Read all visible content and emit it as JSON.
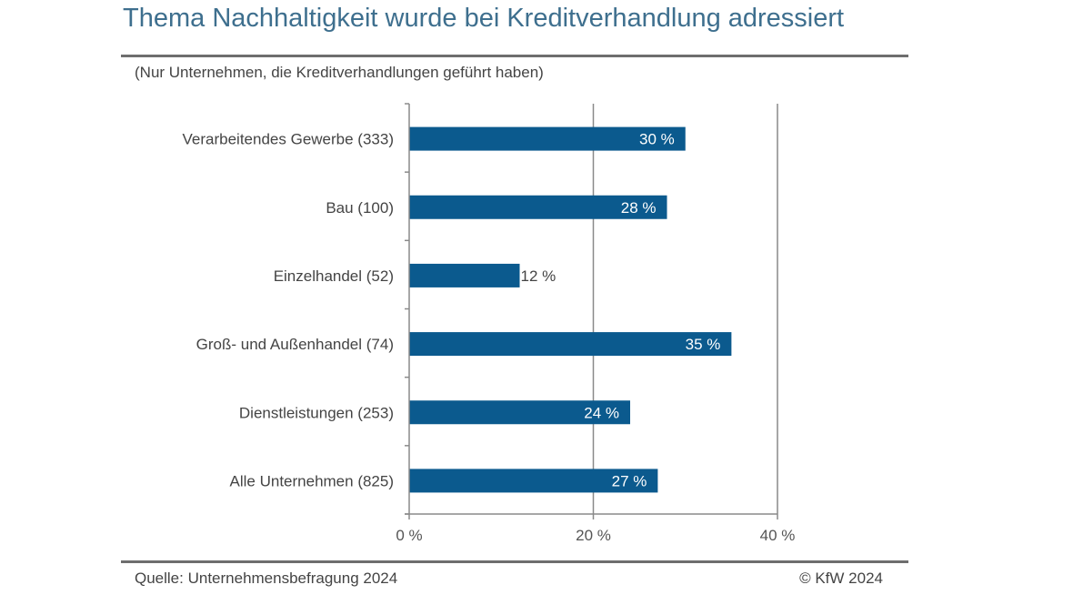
{
  "chart_data": {
    "type": "bar",
    "orientation": "horizontal",
    "title": "Thema Nachhaltigkeit wurde bei Kreditverhandlung adressiert",
    "subtitle": "(Nur Unternehmen, die Kreditverhandlungen geführt haben)",
    "categories": [
      "Verarbeitendes Gewerbe (333)",
      "Bau (100)",
      "Einzelhandel (52)",
      "Groß- und Außenhandel (74)",
      "Dienstleistungen (253)",
      "Alle Unternehmen (825)"
    ],
    "values": [
      30,
      28,
      12,
      35,
      24,
      27
    ],
    "data_labels": [
      "30 %",
      "28 %",
      "12 %",
      "35 %",
      "24 %",
      "27 %"
    ],
    "xlim": [
      0,
      40
    ],
    "xticks": [
      0,
      20,
      40
    ],
    "xtick_labels": [
      "0 %",
      "20 %",
      "40 %"
    ],
    "grid": "vertical",
    "bar_color": "#0b5a8e",
    "title_color": "#3e6f8e"
  },
  "footer": {
    "source": "Quelle: Unternehmensbefragung 2024",
    "copyright": "© KfW 2024"
  }
}
